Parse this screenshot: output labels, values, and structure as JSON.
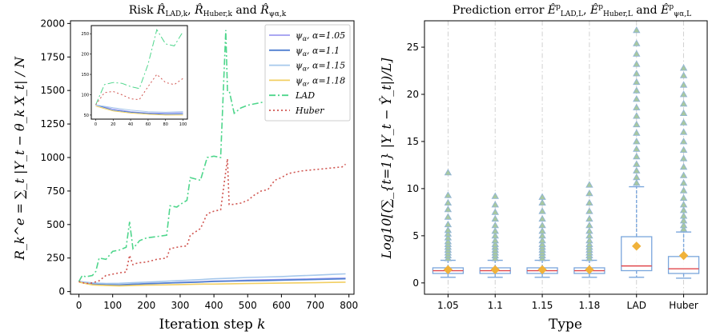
{
  "chart_data": [
    {
      "type": "line",
      "title": "Risk R̂_LAD,k, R̂_Huber,k and R̂_ψα,k",
      "title_parts": {
        "lead": "Risk ",
        "r1": "R̂",
        "s1": "LAD,k",
        "sep1": ", ",
        "r2": "R̂",
        "s2": "Huber,k",
        "sep2": " and ",
        "r3": "R̂",
        "s3": "ψα,k"
      },
      "xlabel": "Iteration step k",
      "xlabel_parts": {
        "main": "Iteration step ",
        "var": "k"
      },
      "ylabel": "R_k^e = ∑_t |Y_t − θ_k X_t| / N",
      "xlim": [
        -25,
        815
      ],
      "ylim": [
        -20,
        2020
      ],
      "xticks": [
        0,
        100,
        200,
        300,
        400,
        500,
        600,
        700,
        800
      ],
      "yticks": [
        0,
        250,
        500,
        750,
        1000,
        1250,
        1500,
        1750,
        2000
      ],
      "grid": false,
      "legend_position": "top-right",
      "series": [
        {
          "name": "ψα, α=1.05",
          "label_main": "ψ",
          "label_sub": "α",
          "label_tail": ", α=1.05",
          "color": "#9e9cf0",
          "dash": "solid",
          "x": [
            0,
            40,
            80,
            120,
            160,
            200,
            250,
            300,
            350,
            400,
            450,
            500,
            550,
            600,
            650,
            700,
            750,
            790
          ],
          "y": [
            75,
            55,
            48,
            50,
            52,
            60,
            62,
            68,
            72,
            78,
            80,
            85,
            88,
            90,
            92,
            95,
            98,
            100
          ]
        },
        {
          "name": "ψα, α=1.1",
          "label_main": "ψ",
          "label_sub": "α",
          "label_tail": ", α=1.1",
          "color": "#4f7fd0",
          "dash": "solid",
          "x": [
            0,
            40,
            80,
            120,
            160,
            200,
            250,
            300,
            350,
            400,
            450,
            500,
            550,
            600,
            650,
            700,
            750,
            790
          ],
          "y": [
            75,
            60,
            52,
            50,
            55,
            58,
            63,
            66,
            70,
            75,
            78,
            80,
            82,
            85,
            88,
            90,
            93,
            95
          ]
        },
        {
          "name": "ψα, α=1.15",
          "label_main": "ψ",
          "label_sub": "α",
          "label_tail": ", α=1.15",
          "color": "#a6c8ec",
          "dash": "solid",
          "x": [
            0,
            40,
            80,
            120,
            160,
            200,
            250,
            300,
            350,
            400,
            450,
            500,
            550,
            600,
            650,
            700,
            750,
            790
          ],
          "y": [
            75,
            65,
            60,
            62,
            66,
            70,
            76,
            82,
            88,
            95,
            100,
            105,
            108,
            112,
            118,
            122,
            128,
            132
          ]
        },
        {
          "name": "ψα, α=1.18",
          "label_main": "ψ",
          "label_sub": "α",
          "label_tail": ", α=1.18",
          "color": "#f2cf62",
          "dash": "solid",
          "x": [
            0,
            40,
            80,
            120,
            160,
            200,
            250,
            300,
            350,
            400,
            450,
            500,
            550,
            600,
            650,
            700,
            750,
            790
          ],
          "y": [
            70,
            50,
            45,
            42,
            45,
            48,
            50,
            52,
            55,
            56,
            58,
            60,
            62,
            63,
            65,
            66,
            68,
            70
          ]
        },
        {
          "name": "LAD",
          "label_main": "LAD",
          "label_sub": "",
          "label_tail": "",
          "color": "#4fd68c",
          "dash": "dashdot",
          "x": [
            0,
            10,
            20,
            40,
            50,
            60,
            80,
            100,
            120,
            140,
            150,
            160,
            170,
            180,
            200,
            230,
            260,
            270,
            290,
            300,
            320,
            330,
            360,
            380,
            400,
            420,
            435,
            440,
            445,
            460,
            480,
            500,
            520,
            560
          ],
          "y": [
            75,
            120,
            110,
            120,
            150,
            250,
            240,
            300,
            310,
            330,
            520,
            320,
            350,
            380,
            400,
            410,
            420,
            640,
            630,
            650,
            680,
            850,
            830,
            1000,
            1010,
            1000,
            1950,
            1500,
            1500,
            1330,
            1370,
            1390,
            1400,
            1420
          ]
        },
        {
          "name": "Huber",
          "label_main": "Huber",
          "label_sub": "",
          "label_tail": "",
          "color": "#d05550",
          "dash": "dotted",
          "x": [
            0,
            20,
            40,
            60,
            80,
            100,
            120,
            140,
            150,
            160,
            170,
            180,
            200,
            230,
            260,
            270,
            290,
            300,
            320,
            330,
            360,
            380,
            400,
            420,
            440,
            445,
            455,
            480,
            500,
            520,
            540,
            560,
            580,
            600,
            620,
            640,
            660,
            680,
            700,
            720,
            740,
            760,
            780,
            790
          ],
          "y": [
            75,
            60,
            65,
            80,
            120,
            130,
            140,
            145,
            270,
            200,
            210,
            215,
            220,
            240,
            250,
            320,
            330,
            335,
            340,
            420,
            470,
            580,
            600,
            610,
            990,
            650,
            650,
            660,
            680,
            720,
            750,
            760,
            830,
            850,
            880,
            890,
            900,
            905,
            910,
            915,
            920,
            925,
            930,
            950
          ]
        }
      ],
      "inset": {
        "xlim": [
          -5,
          105
        ],
        "ylim": [
          40,
          270
        ],
        "xticks": [
          0,
          20,
          40,
          60,
          80,
          100
        ],
        "yticks": [
          50,
          100,
          150,
          200,
          250
        ],
        "series": [
          {
            "name": "LAD",
            "x": [
              0,
              10,
              20,
              30,
              40,
              50,
              60,
              70,
              80,
              90,
              100
            ],
            "y": [
              75,
              125,
              130,
              128,
              120,
              115,
              175,
              260,
              225,
              220,
              255
            ]
          },
          {
            "name": "Huber",
            "x": [
              0,
              10,
              20,
              30,
              40,
              50,
              60,
              70,
              80,
              90,
              100
            ],
            "y": [
              75,
              105,
              108,
              100,
              90,
              88,
              120,
              150,
              130,
              125,
              140
            ]
          },
          {
            "name": "ψα, α=1.05",
            "x": [
              0,
              20,
              40,
              60,
              80,
              100
            ],
            "y": [
              75,
              65,
              58,
              55,
              55,
              56
            ]
          },
          {
            "name": "ψα, α=1.1",
            "x": [
              0,
              20,
              40,
              60,
              80,
              100
            ],
            "y": [
              75,
              62,
              57,
              54,
              52,
              53
            ]
          },
          {
            "name": "ψα, α=1.15",
            "x": [
              0,
              20,
              40,
              60,
              80,
              100
            ],
            "y": [
              75,
              68,
              62,
              58,
              57,
              58
            ]
          },
          {
            "name": "ψα, α=1.18",
            "x": [
              0,
              20,
              40,
              60,
              80,
              100
            ],
            "y": [
              72,
              60,
              55,
              52,
              50,
              50
            ]
          }
        ]
      }
    },
    {
      "type": "box",
      "title": "Prediction error Ê^p_LAD,L, Ê^p_Huber,L and Ê^p_ψα,L",
      "title_parts": {
        "lead": "Prediction error ",
        "e1": "Ê",
        "p1": "p",
        "s1": "LAD,L",
        "sep1": ", ",
        "e2": "Ê",
        "p2": "p",
        "s2": "Huber,L",
        "sep2": " and ",
        "e3": "Ê",
        "p3": "p",
        "s3": "ψα,L"
      },
      "xlabel": "Type",
      "ylabel": "Log10[(∑_{t=1} |Y_t − Ŷ_t|)/L]",
      "ylim": [
        -1.2,
        27.8
      ],
      "yticks": [
        0,
        5,
        10,
        15,
        20,
        25
      ],
      "grid": false,
      "categories": [
        "1.05",
        "1.1",
        "1.15",
        "1.18",
        "LAD",
        "Huber"
      ],
      "boxes": [
        {
          "whislo": 0.6,
          "q1": 1.0,
          "med": 1.3,
          "q3": 1.6,
          "whishi": 2.4,
          "mean": 1.4,
          "fliers": [
            2.6,
            2.9,
            3.2,
            3.5,
            3.8,
            4.1,
            4.4,
            4.8,
            5.2,
            5.6,
            6.2,
            7.0,
            7.8,
            8.5,
            9.3,
            11.7
          ]
        },
        {
          "whislo": 0.6,
          "q1": 1.0,
          "med": 1.3,
          "q3": 1.6,
          "whishi": 2.4,
          "mean": 1.4,
          "fliers": [
            2.6,
            2.9,
            3.2,
            3.5,
            3.8,
            4.1,
            4.5,
            5.0,
            5.5,
            6.1,
            6.8,
            7.5,
            8.3,
            9.2
          ]
        },
        {
          "whislo": 0.6,
          "q1": 1.0,
          "med": 1.3,
          "q3": 1.6,
          "whishi": 2.4,
          "mean": 1.4,
          "fliers": [
            2.6,
            2.9,
            3.2,
            3.5,
            3.8,
            4.1,
            4.5,
            5.0,
            5.5,
            6.1,
            6.8,
            7.6,
            8.5,
            9.1
          ]
        },
        {
          "whislo": 0.6,
          "q1": 1.0,
          "med": 1.3,
          "q3": 1.6,
          "whishi": 2.4,
          "mean": 1.4,
          "fliers": [
            2.6,
            2.9,
            3.2,
            3.5,
            3.8,
            4.1,
            4.5,
            5.0,
            5.5,
            6.1,
            6.8,
            7.6,
            8.5,
            9.5,
            10.4
          ]
        },
        {
          "whislo": 0.6,
          "q1": 1.3,
          "med": 1.8,
          "q3": 4.9,
          "whishi": 10.2,
          "mean": 3.9,
          "fliers": [
            10.6,
            11.2,
            11.9,
            12.6,
            13.4,
            14.2,
            15.0,
            15.9,
            16.8,
            17.7,
            18.6,
            19.5,
            20.4,
            21.3,
            22.2,
            23.2,
            24.3,
            25.4,
            26.8
          ]
        },
        {
          "whislo": 0.5,
          "q1": 1.0,
          "med": 1.5,
          "q3": 2.8,
          "whishi": 5.4,
          "mean": 2.9,
          "fliers": [
            5.7,
            6.1,
            6.6,
            7.1,
            7.7,
            8.3,
            9.0,
            9.8,
            10.6,
            11.4,
            12.3,
            13.2,
            14.1,
            15.0,
            16.0,
            17.0,
            18.0,
            19.0,
            20.0,
            21.0,
            22.0,
            22.8
          ]
        }
      ],
      "colors": {
        "box": "#7aa6dc",
        "median": "#e0474c",
        "mean": "#f0b23a",
        "flier_fill": "#a8c8a0",
        "flier_edge": "#8fb3d9",
        "gridline": "#cccccc"
      }
    }
  ]
}
